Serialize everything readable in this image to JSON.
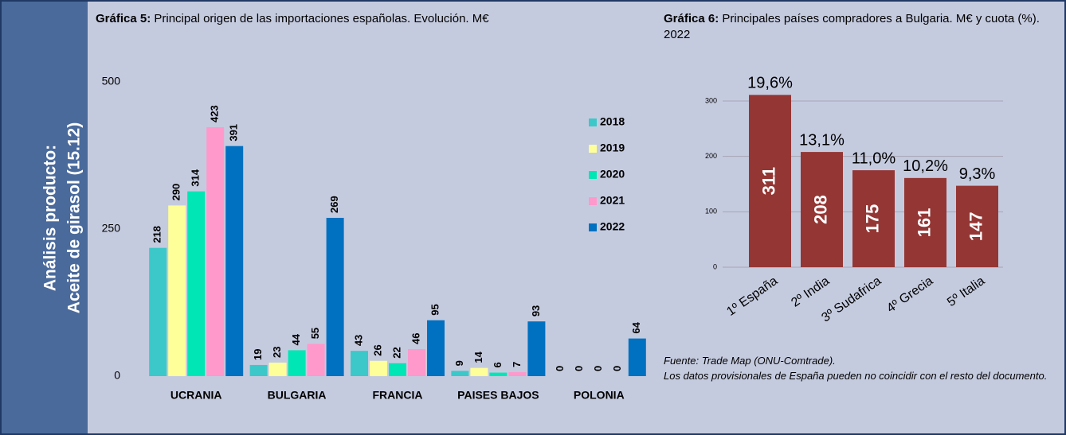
{
  "sidebar": {
    "line1": "Análisis producto:",
    "line2": "Aceite de girasol (15.12)"
  },
  "chart_data": [
    {
      "type": "bar",
      "title_prefix": "Gráfica 5:",
      "title": "Principal origen de las importaciones españolas. Evolución. M€",
      "categories": [
        "UCRANIA",
        "BULGARIA",
        "FRANCIA",
        "PAISES BAJOS",
        "POLONIA"
      ],
      "series": [
        {
          "name": "2018",
          "color": "#3cc8c8",
          "values": [
            218,
            19,
            43,
            9,
            0
          ]
        },
        {
          "name": "2019",
          "color": "#ffff99",
          "values": [
            290,
            23,
            26,
            14,
            0
          ]
        },
        {
          "name": "2020",
          "color": "#00e6b4",
          "values": [
            314,
            44,
            22,
            6,
            0
          ]
        },
        {
          "name": "2021",
          "color": "#ff99cc",
          "values": [
            423,
            55,
            46,
            7,
            0
          ]
        },
        {
          "name": "2022",
          "color": "#0070c0",
          "values": [
            391,
            269,
            95,
            93,
            64
          ]
        }
      ],
      "ylim": [
        0,
        500
      ],
      "yticks": [
        0,
        250,
        500
      ],
      "grid": false,
      "legend": "right"
    },
    {
      "type": "bar",
      "title_prefix": "Gráfica 6:",
      "title": "Principales países compradores a Bulgaria. M€ y cuota (%). 2022",
      "categories": [
        "1º España",
        "2º  India",
        "3º Sudafrica",
        "4º Grecia",
        "5º Italia"
      ],
      "values": [
        311,
        208,
        175,
        161,
        147
      ],
      "color": "#943634",
      "shares": [
        19.6,
        13.1,
        11.0,
        10.2,
        9.3
      ],
      "share_labels": [
        "19,6%",
        "13,1%",
        "11,0%",
        "10,2%",
        "9,3%"
      ],
      "ylim": [
        0,
        300
      ],
      "yticks": [
        0,
        100,
        200,
        300
      ],
      "grid": true
    }
  ],
  "footnote": {
    "source": "Fuente: Trade Map (ONU-Comtrade).",
    "note": "Los datos provisionales de España pueden no coincidir con el resto del documento."
  }
}
